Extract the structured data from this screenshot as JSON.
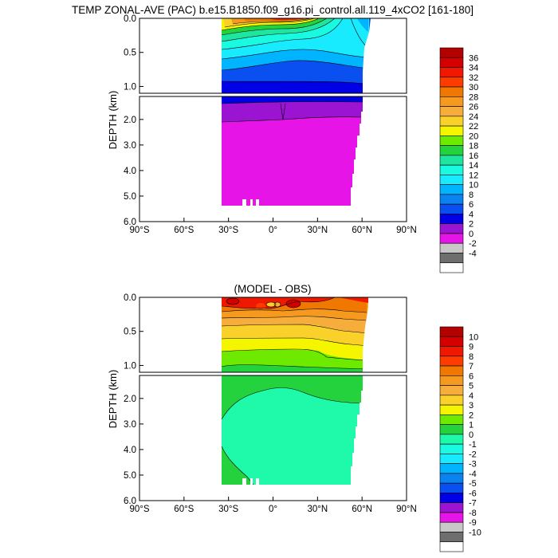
{
  "title": "TEMP ZONAL-AVE (PAC) b.e15.B1850.f09_g16.pi_control.all.119_4xCO2 [161-180]",
  "chart_data": [
    {
      "type": "heatmap",
      "title": "",
      "ylabel": "DEPTH (km)",
      "x_ticks": [
        "90°S",
        "60°S",
        "30°S",
        "0°",
        "30°N",
        "60°N",
        "90°N"
      ],
      "x_tick_values": [
        -90,
        -60,
        -30,
        0,
        30,
        60,
        90
      ],
      "xlim": [
        -90,
        90
      ],
      "upper_y_ticks": [
        "0.0",
        "0.5",
        "1.0"
      ],
      "upper_y_values": [
        0,
        0.5,
        1.0
      ],
      "lower_y_ticks": [
        "2.0",
        "3.0",
        "4.0",
        "5.0",
        "6.0"
      ],
      "lower_y_values": [
        2,
        3,
        4,
        5,
        6
      ],
      "upper_ylim": [
        0,
        1.1
      ],
      "lower_ylim": [
        1.1,
        6.0
      ],
      "colorbar_labels": [
        "36",
        "34",
        "32",
        "30",
        "28",
        "26",
        "24",
        "22",
        "20",
        "18",
        "16",
        "14",
        "12",
        "10",
        "8",
        "6",
        "4",
        "2",
        "0",
        "-2",
        "-4"
      ],
      "colorbar_colors": [
        "#b30000",
        "#d40000",
        "#f01800",
        "#ff3c00",
        "#f07800",
        "#f59a1e",
        "#f7ad3c",
        "#fad02a",
        "#f5f500",
        "#6eea00",
        "#23d23c",
        "#1ee6a0",
        "#19fae1",
        "#19ebff",
        "#00b4ff",
        "#0a82f0",
        "#0a50f0",
        "#0000e6",
        "#9b14d2",
        "#e614e6",
        "#c8c8c8",
        "#6e6e6e",
        "#ffffff"
      ],
      "data_extent_lat": [
        -33,
        62
      ],
      "data_max_depth_km": 5.35,
      "profile_by_depth": [
        {
          "depth_km": 0.0,
          "temp_c": 29
        },
        {
          "depth_km": 0.1,
          "temp_c": 24
        },
        {
          "depth_km": 0.25,
          "temp_c": 17
        },
        {
          "depth_km": 0.5,
          "temp_c": 11
        },
        {
          "depth_km": 0.8,
          "temp_c": 8
        },
        {
          "depth_km": 1.0,
          "temp_c": 5
        },
        {
          "depth_km": 1.3,
          "temp_c": 3
        },
        {
          "depth_km": 2.0,
          "temp_c": 1.5
        },
        {
          "depth_km": 5.0,
          "temp_c": 1
        }
      ]
    },
    {
      "type": "heatmap",
      "title": "(MODEL - OBS)",
      "ylabel": "DEPTH (km)",
      "x_ticks": [
        "90°S",
        "60°S",
        "30°S",
        "0°",
        "30°N",
        "60°N",
        "90°N"
      ],
      "x_tick_values": [
        -90,
        -60,
        -30,
        0,
        30,
        60,
        90
      ],
      "xlim": [
        -90,
        90
      ],
      "upper_y_ticks": [
        "0.0",
        "0.5",
        "1.0"
      ],
      "upper_y_values": [
        0,
        0.5,
        1.0
      ],
      "lower_y_ticks": [
        "2.0",
        "3.0",
        "4.0",
        "5.0",
        "6.0"
      ],
      "lower_y_values": [
        2,
        3,
        4,
        5,
        6
      ],
      "upper_ylim": [
        0,
        1.1
      ],
      "lower_ylim": [
        1.1,
        6.0
      ],
      "colorbar_labels": [
        "10",
        "9",
        "8",
        "7",
        "6",
        "5",
        "4",
        "3",
        "2",
        "1",
        "0",
        "-1",
        "-2",
        "-3",
        "-4",
        "-5",
        "-6",
        "-7",
        "-8",
        "-9",
        "-10"
      ],
      "colorbar_colors": [
        "#b30000",
        "#d40000",
        "#f01800",
        "#ff3c00",
        "#f07800",
        "#f59a1e",
        "#f7ad3c",
        "#fad02a",
        "#f5f500",
        "#6eea00",
        "#23d23c",
        "#1efaaa",
        "#19fae1",
        "#19ebff",
        "#00b4ff",
        "#0a82f0",
        "#0a50f0",
        "#0000e6",
        "#9b14d2",
        "#e614e6",
        "#c8c8c8",
        "#6e6e6e",
        "#ffffff"
      ],
      "data_extent_lat": [
        -33,
        62
      ],
      "data_max_depth_km": 5.35,
      "profile_by_depth": [
        {
          "depth_km": 0.0,
          "diff_c": 8
        },
        {
          "depth_km": 0.2,
          "diff_c": 6
        },
        {
          "depth_km": 0.5,
          "diff_c": 4.5
        },
        {
          "depth_km": 0.8,
          "diff_c": 2.5
        },
        {
          "depth_km": 1.0,
          "diff_c": 1.5
        },
        {
          "depth_km": 1.5,
          "diff_c": 0.5
        },
        {
          "depth_km": 2.5,
          "diff_c": -0.5
        },
        {
          "depth_km": 5.0,
          "diff_c": -0.5
        }
      ]
    }
  ]
}
